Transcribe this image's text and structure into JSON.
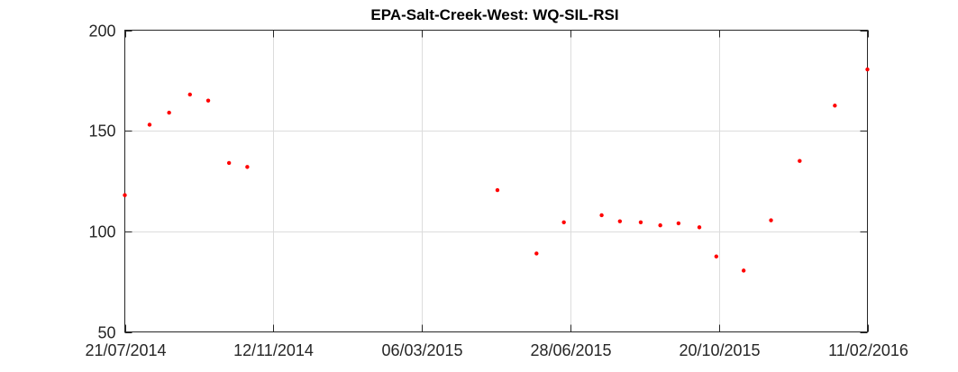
{
  "chart_data": {
    "type": "scatter",
    "title": "EPA-Salt-Creek-West: WQ-SIL-RSI",
    "xlabel": "",
    "ylabel": "",
    "xlim": [
      "2014-07-21",
      "2016-02-11"
    ],
    "ylim": [
      50,
      200
    ],
    "grid": true,
    "marker_color": "#ff0000",
    "xticks": [
      {
        "date": "2014-07-21",
        "label": "21/07/2014"
      },
      {
        "date": "2014-11-12",
        "label": "12/11/2014"
      },
      {
        "date": "2015-03-06",
        "label": "06/03/2015"
      },
      {
        "date": "2015-06-28",
        "label": "28/06/2015"
      },
      {
        "date": "2015-10-20",
        "label": "20/10/2015"
      },
      {
        "date": "2016-02-11",
        "label": "11/02/2016"
      }
    ],
    "yticks": [
      50,
      100,
      150,
      200
    ],
    "points": [
      {
        "x": "2014-07-21",
        "y": 118
      },
      {
        "x": "2014-08-09",
        "y": 153
      },
      {
        "x": "2014-08-24",
        "y": 159
      },
      {
        "x": "2014-09-09",
        "y": 168
      },
      {
        "x": "2014-09-23",
        "y": 165
      },
      {
        "x": "2014-10-09",
        "y": 134
      },
      {
        "x": "2014-10-23",
        "y": 132
      },
      {
        "x": "2015-05-03",
        "y": 120.5
      },
      {
        "x": "2015-06-02",
        "y": 89
      },
      {
        "x": "2015-06-23",
        "y": 104.5
      },
      {
        "x": "2015-07-22",
        "y": 108
      },
      {
        "x": "2015-08-05",
        "y": 105
      },
      {
        "x": "2015-08-21",
        "y": 104.5
      },
      {
        "x": "2015-09-05",
        "y": 103
      },
      {
        "x": "2015-09-19",
        "y": 104
      },
      {
        "x": "2015-10-05",
        "y": 102
      },
      {
        "x": "2015-10-18",
        "y": 87.5
      },
      {
        "x": "2015-11-08",
        "y": 80.5
      },
      {
        "x": "2015-11-29",
        "y": 105.5
      },
      {
        "x": "2015-12-21",
        "y": 135
      },
      {
        "x": "2016-01-17",
        "y": 162.5
      },
      {
        "x": "2016-02-11",
        "y": 180.5
      }
    ]
  }
}
